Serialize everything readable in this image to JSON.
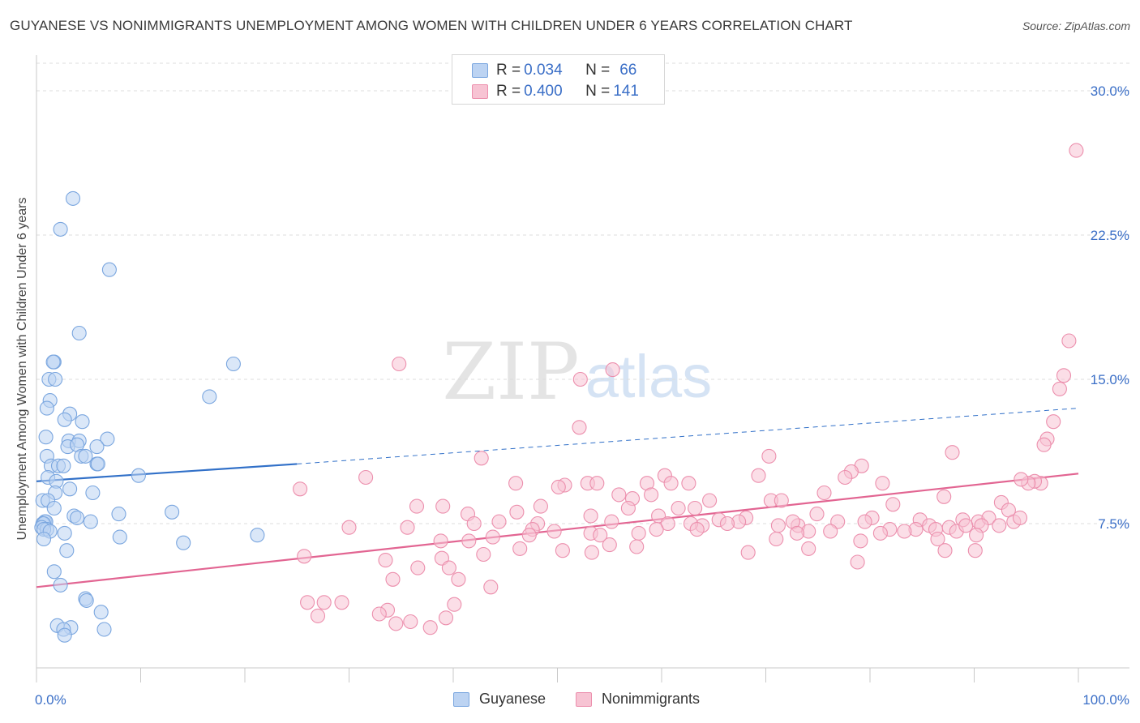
{
  "header": {
    "title": "GUYANESE VS NONIMMIGRANTS UNEMPLOYMENT AMONG WOMEN WITH CHILDREN UNDER 6 YEARS CORRELATION CHART",
    "source": "Source: ZipAtlas.com"
  },
  "watermark": {
    "zip": "ZIP",
    "atlas": "atlas"
  },
  "colors": {
    "blue_fill": "#bcd3f2",
    "blue_stroke": "#7aa6df",
    "blue_line": "#3170c8",
    "pink_fill": "#f7c3d3",
    "pink_stroke": "#ec8fad",
    "pink_line": "#e26592",
    "axis_text": "#3b6fc7",
    "grid": "#dcdcdc"
  },
  "legend_top": {
    "rows": [
      {
        "r_label": "R = ",
        "r_value": "0.034",
        "n_label": "N = ",
        "n_value": "66"
      },
      {
        "r_label": "R = ",
        "r_value": "0.400",
        "n_label": "N = ",
        "n_value": "141"
      }
    ]
  },
  "legend_bottom": {
    "items": [
      "Guyanese",
      "Nonimmigrants"
    ]
  },
  "chart_data": {
    "type": "scatter",
    "title": "GUYANESE VS NONIMMIGRANTS UNEMPLOYMENT AMONG WOMEN WITH CHILDREN UNDER 6 YEARS CORRELATION CHART",
    "xlabel": "",
    "ylabel": "Unemployment Among Women with Children Under 6 years",
    "xlim": [
      0,
      100
    ],
    "ylim": [
      0,
      31
    ],
    "x_tick_labels": [
      "0.0%",
      "100.0%"
    ],
    "y_ticks": [
      7.5,
      15.0,
      22.5,
      30.0
    ],
    "y_tick_labels": [
      "7.5%",
      "15.0%",
      "22.5%",
      "30.0%"
    ],
    "grid": "horizontal dashed",
    "legend_position": "top-center",
    "series": [
      {
        "name": "Guyanese",
        "color": "#7aa6df",
        "r": 0.034,
        "n": 66,
        "trend": {
          "x0": 0,
          "y0": 9.7,
          "x1": 25,
          "y1": 10.6,
          "dashed_to_x": 100,
          "dashed_to_y": 13.5
        },
        "points": [
          [
            3.5,
            24.4
          ],
          [
            2.3,
            22.8
          ],
          [
            7.0,
            20.7
          ],
          [
            4.1,
            17.4
          ],
          [
            1.7,
            15.9
          ],
          [
            1.6,
            15.9
          ],
          [
            18.9,
            15.8
          ],
          [
            1.2,
            15.0
          ],
          [
            1.8,
            15.0
          ],
          [
            16.6,
            14.1
          ],
          [
            1.3,
            13.9
          ],
          [
            1.0,
            13.5
          ],
          [
            3.2,
            13.2
          ],
          [
            2.7,
            12.9
          ],
          [
            4.4,
            12.8
          ],
          [
            0.9,
            12.0
          ],
          [
            3.1,
            11.8
          ],
          [
            4.1,
            11.8
          ],
          [
            6.8,
            11.9
          ],
          [
            3.0,
            11.5
          ],
          [
            3.9,
            11.6
          ],
          [
            5.8,
            11.5
          ],
          [
            4.3,
            11.0
          ],
          [
            1.0,
            11.0
          ],
          [
            4.7,
            11.0
          ],
          [
            5.8,
            10.6
          ],
          [
            5.9,
            10.6
          ],
          [
            1.4,
            10.5
          ],
          [
            2.1,
            10.5
          ],
          [
            2.6,
            10.5
          ],
          [
            9.8,
            10.0
          ],
          [
            1.1,
            9.9
          ],
          [
            1.9,
            9.7
          ],
          [
            3.2,
            9.3
          ],
          [
            5.4,
            9.1
          ],
          [
            1.8,
            9.1
          ],
          [
            0.6,
            8.7
          ],
          [
            1.1,
            8.7
          ],
          [
            1.7,
            8.3
          ],
          [
            13.0,
            8.1
          ],
          [
            7.9,
            8.0
          ],
          [
            3.6,
            7.9
          ],
          [
            3.9,
            7.8
          ],
          [
            5.2,
            7.6
          ],
          [
            0.8,
            7.6
          ],
          [
            0.9,
            7.6
          ],
          [
            0.6,
            7.5
          ],
          [
            0.7,
            7.5
          ],
          [
            0.5,
            7.3
          ],
          [
            1.0,
            7.2
          ],
          [
            0.7,
            7.2
          ],
          [
            1.3,
            7.1
          ],
          [
            2.7,
            7.0
          ],
          [
            21.2,
            6.9
          ],
          [
            8.0,
            6.8
          ],
          [
            0.7,
            6.7
          ],
          [
            14.1,
            6.5
          ],
          [
            2.9,
            6.1
          ],
          [
            1.7,
            5.0
          ],
          [
            2.3,
            4.3
          ],
          [
            4.7,
            3.6
          ],
          [
            4.8,
            3.5
          ],
          [
            6.2,
            2.9
          ],
          [
            2.0,
            2.2
          ],
          [
            3.3,
            2.1
          ],
          [
            6.5,
            2.0
          ],
          [
            2.6,
            2.0
          ],
          [
            2.7,
            1.7
          ]
        ]
      },
      {
        "name": "Nonimmigrants",
        "color": "#ec8fad",
        "r": 0.4,
        "n": 141,
        "trend": {
          "x0": 0,
          "y0": 4.2,
          "x1": 100,
          "y1": 10.1
        },
        "points": [
          [
            99.8,
            26.9
          ],
          [
            99.1,
            17.0
          ],
          [
            98.6,
            15.2
          ],
          [
            98.2,
            14.5
          ],
          [
            34.8,
            15.8
          ],
          [
            52.2,
            15.0
          ],
          [
            55.3,
            15.5
          ],
          [
            97.6,
            12.8
          ],
          [
            97.0,
            11.9
          ],
          [
            96.7,
            11.6
          ],
          [
            52.1,
            12.5
          ],
          [
            87.9,
            11.2
          ],
          [
            70.3,
            11.0
          ],
          [
            96.4,
            9.6
          ],
          [
            95.8,
            9.7
          ],
          [
            95.2,
            9.6
          ],
          [
            94.5,
            9.8
          ],
          [
            42.7,
            10.9
          ],
          [
            79.2,
            10.5
          ],
          [
            78.2,
            10.2
          ],
          [
            69.3,
            10.0
          ],
          [
            77.6,
            9.9
          ],
          [
            60.3,
            10.0
          ],
          [
            58.6,
            9.6
          ],
          [
            52.9,
            9.6
          ],
          [
            53.8,
            9.6
          ],
          [
            60.9,
            9.6
          ],
          [
            62.6,
            9.6
          ],
          [
            50.7,
            9.5
          ],
          [
            46.0,
            9.6
          ],
          [
            31.6,
            9.9
          ],
          [
            25.3,
            9.3
          ],
          [
            50.1,
            9.4
          ],
          [
            81.2,
            9.6
          ],
          [
            75.6,
            9.1
          ],
          [
            59.0,
            9.0
          ],
          [
            55.9,
            9.0
          ],
          [
            57.2,
            8.8
          ],
          [
            64.6,
            8.7
          ],
          [
            70.5,
            8.7
          ],
          [
            71.5,
            8.7
          ],
          [
            92.6,
            8.6
          ],
          [
            87.1,
            8.9
          ],
          [
            82.2,
            8.5
          ],
          [
            61.6,
            8.3
          ],
          [
            63.2,
            8.3
          ],
          [
            36.5,
            8.4
          ],
          [
            39.0,
            8.4
          ],
          [
            56.8,
            8.3
          ],
          [
            48.4,
            8.4
          ],
          [
            46.1,
            8.1
          ],
          [
            53.2,
            7.9
          ],
          [
            59.7,
            7.9
          ],
          [
            68.1,
            7.8
          ],
          [
            41.4,
            8.0
          ],
          [
            74.9,
            8.0
          ],
          [
            80.2,
            7.8
          ],
          [
            84.8,
            7.7
          ],
          [
            88.9,
            7.7
          ],
          [
            90.4,
            7.6
          ],
          [
            91.4,
            7.8
          ],
          [
            93.3,
            8.2
          ],
          [
            79.5,
            7.6
          ],
          [
            76.9,
            7.6
          ],
          [
            67.4,
            7.6
          ],
          [
            65.5,
            7.7
          ],
          [
            66.3,
            7.5
          ],
          [
            73.1,
            7.4
          ],
          [
            72.6,
            7.6
          ],
          [
            71.2,
            7.4
          ],
          [
            63.9,
            7.4
          ],
          [
            62.8,
            7.5
          ],
          [
            60.6,
            7.5
          ],
          [
            55.2,
            7.6
          ],
          [
            48.1,
            7.5
          ],
          [
            44.4,
            7.6
          ],
          [
            47.6,
            7.2
          ],
          [
            42.0,
            7.5
          ],
          [
            30.0,
            7.3
          ],
          [
            35.6,
            7.3
          ],
          [
            76.2,
            7.1
          ],
          [
            81.9,
            7.2
          ],
          [
            84.4,
            7.2
          ],
          [
            85.7,
            7.4
          ],
          [
            86.3,
            7.2
          ],
          [
            87.6,
            7.3
          ],
          [
            88.3,
            7.1
          ],
          [
            89.2,
            7.4
          ],
          [
            90.7,
            7.4
          ],
          [
            92.4,
            7.4
          ],
          [
            93.8,
            7.6
          ],
          [
            94.4,
            7.8
          ],
          [
            83.3,
            7.1
          ],
          [
            81.0,
            7.0
          ],
          [
            74.1,
            7.1
          ],
          [
            73.0,
            7.0
          ],
          [
            63.4,
            7.2
          ],
          [
            59.5,
            7.2
          ],
          [
            57.8,
            7.0
          ],
          [
            53.2,
            7.0
          ],
          [
            54.1,
            6.9
          ],
          [
            49.7,
            7.1
          ],
          [
            47.3,
            6.9
          ],
          [
            43.8,
            6.8
          ],
          [
            41.5,
            6.6
          ],
          [
            38.8,
            6.6
          ],
          [
            86.5,
            6.7
          ],
          [
            90.2,
            6.9
          ],
          [
            79.1,
            6.6
          ],
          [
            71.0,
            6.7
          ],
          [
            55.0,
            6.4
          ],
          [
            57.6,
            6.3
          ],
          [
            53.3,
            6.0
          ],
          [
            50.5,
            6.1
          ],
          [
            46.4,
            6.2
          ],
          [
            42.9,
            5.9
          ],
          [
            38.9,
            5.7
          ],
          [
            33.5,
            5.6
          ],
          [
            68.3,
            6.0
          ],
          [
            74.1,
            6.2
          ],
          [
            87.2,
            6.1
          ],
          [
            90.1,
            6.1
          ],
          [
            78.8,
            5.5
          ],
          [
            25.7,
            5.8
          ],
          [
            39.6,
            5.2
          ],
          [
            36.6,
            5.2
          ],
          [
            34.2,
            4.6
          ],
          [
            40.5,
            4.6
          ],
          [
            43.6,
            4.2
          ],
          [
            40.1,
            3.3
          ],
          [
            26.0,
            3.4
          ],
          [
            27.6,
            3.4
          ],
          [
            29.3,
            3.4
          ],
          [
            33.7,
            3.0
          ],
          [
            32.9,
            2.8
          ],
          [
            39.3,
            2.6
          ],
          [
            35.9,
            2.4
          ],
          [
            37.8,
            2.1
          ],
          [
            34.5,
            2.3
          ],
          [
            27.0,
            2.7
          ]
        ]
      }
    ]
  }
}
